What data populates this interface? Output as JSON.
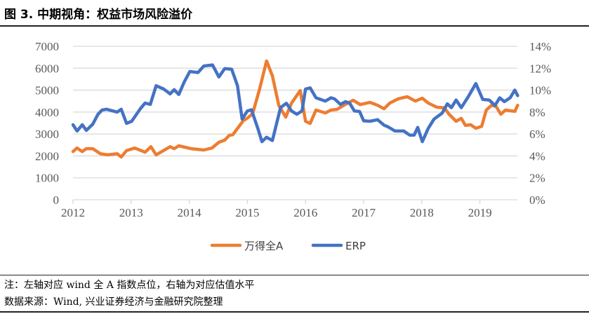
{
  "header": {
    "title": "图 3. 中期视角：权益市场风险溢价"
  },
  "footer": {
    "note": "注：左轴对应 wind 全 A 指数点位，右轴为对应估值水平",
    "source": "数据来源：Wind, 兴业证券经济与金融研究院整理"
  },
  "chart_data": {
    "type": "line",
    "title": "",
    "xlabel": "",
    "ylabel": "",
    "y2label": "",
    "xlim": [
      2012,
      2019.65
    ],
    "x_ticks": [
      "2012",
      "2013",
      "2014",
      "2015",
      "2016",
      "2017",
      "2018",
      "2019"
    ],
    "ylim": [
      0,
      7000
    ],
    "y_ticks": [
      "0",
      "1000",
      "2000",
      "3000",
      "4000",
      "5000",
      "6000",
      "7000"
    ],
    "y2lim": [
      0,
      14
    ],
    "y2_ticks": [
      "0%",
      "2%",
      "4%",
      "6%",
      "8%",
      "10%",
      "12%",
      "14%"
    ],
    "grid": true,
    "legend": "bottom",
    "series": [
      {
        "name": "万得全A",
        "axis": "left",
        "color": "#ED7D31",
        "x": [
          2012.0,
          2012.07,
          2012.16,
          2012.23,
          2012.34,
          2012.47,
          2012.59,
          2012.76,
          2012.83,
          2012.92,
          2013.06,
          2013.24,
          2013.34,
          2013.43,
          2013.67,
          2013.74,
          2013.82,
          2014.03,
          2014.25,
          2014.39,
          2014.51,
          2014.61,
          2014.69,
          2014.75,
          2014.93,
          2015.01,
          2015.09,
          2015.21,
          2015.33,
          2015.43,
          2015.54,
          2015.66,
          2015.76,
          2015.91,
          2016.0,
          2016.08,
          2016.18,
          2016.34,
          2016.44,
          2016.54,
          2016.66,
          2016.82,
          2016.94,
          2017.11,
          2017.24,
          2017.35,
          2017.45,
          2017.59,
          2017.75,
          2017.89,
          2018.01,
          2018.11,
          2018.26,
          2018.39,
          2018.47,
          2018.59,
          2018.68,
          2018.75,
          2018.84,
          2018.93,
          2019.03,
          2019.11,
          2019.2,
          2019.28,
          2019.36,
          2019.44,
          2019.6,
          2019.65
        ],
        "values": [
          2200,
          2360,
          2200,
          2330,
          2330,
          2100,
          2050,
          2100,
          1950,
          2240,
          2360,
          2170,
          2420,
          2050,
          2420,
          2330,
          2460,
          2330,
          2270,
          2360,
          2620,
          2720,
          2940,
          2970,
          3610,
          3740,
          3930,
          5050,
          6330,
          5650,
          4310,
          3770,
          4410,
          4980,
          3580,
          3480,
          4090,
          3960,
          4090,
          4120,
          4310,
          4540,
          4340,
          4440,
          4310,
          4150,
          4410,
          4600,
          4700,
          4500,
          4630,
          4410,
          4220,
          4190,
          3900,
          3580,
          3710,
          3390,
          3420,
          3260,
          3350,
          4090,
          4310,
          4250,
          3900,
          4090,
          4030,
          4310
        ]
      },
      {
        "name": "ERP",
        "axis": "right",
        "color": "#4472C4",
        "x": [
          2012.0,
          2012.07,
          2012.16,
          2012.23,
          2012.34,
          2012.43,
          2012.5,
          2012.58,
          2012.76,
          2012.83,
          2012.92,
          2013.01,
          2013.16,
          2013.24,
          2013.33,
          2013.43,
          2013.56,
          2013.67,
          2013.74,
          2013.82,
          2013.91,
          2014.01,
          2014.15,
          2014.25,
          2014.4,
          2014.51,
          2014.61,
          2014.73,
          2014.83,
          2014.91,
          2015.0,
          2015.07,
          2015.18,
          2015.25,
          2015.33,
          2015.43,
          2015.57,
          2015.67,
          2015.76,
          2015.85,
          2015.94,
          2016.0,
          2016.08,
          2016.18,
          2016.34,
          2016.44,
          2016.5,
          2016.6,
          2016.69,
          2016.76,
          2016.84,
          2016.93,
          2017.0,
          2017.11,
          2017.24,
          2017.35,
          2017.42,
          2017.54,
          2017.69,
          2017.79,
          2017.87,
          2017.93,
          2018.01,
          2018.11,
          2018.21,
          2018.35,
          2018.44,
          2018.51,
          2018.59,
          2018.68,
          2018.8,
          2018.93,
          2019.05,
          2019.16,
          2019.26,
          2019.34,
          2019.42,
          2019.52,
          2019.6,
          2019.65
        ],
        "values": [
          6.84,
          6.27,
          6.84,
          6.33,
          6.9,
          7.8,
          8.18,
          8.25,
          8.0,
          8.25,
          6.97,
          7.16,
          8.31,
          8.82,
          8.7,
          10.4,
          10.1,
          9.65,
          10.04,
          9.6,
          10.7,
          11.7,
          11.6,
          12.2,
          12.3,
          11.2,
          11.96,
          11.9,
          10.4,
          7.35,
          8.1,
          8.2,
          6.5,
          5.3,
          5.7,
          5.4,
          8.4,
          8.8,
          8.1,
          7.8,
          8.1,
          10.1,
          10.2,
          9.3,
          9.0,
          9.3,
          9.2,
          8.7,
          8.95,
          8.8,
          8.1,
          8.05,
          7.2,
          7.16,
          7.3,
          6.8,
          6.65,
          6.27,
          6.27,
          5.9,
          5.9,
          6.6,
          5.3,
          6.5,
          7.35,
          7.9,
          8.75,
          8.4,
          9.1,
          8.4,
          9.4,
          10.6,
          9.15,
          9.1,
          8.6,
          9.3,
          8.95,
          9.3,
          10.0,
          9.5
        ]
      }
    ]
  }
}
